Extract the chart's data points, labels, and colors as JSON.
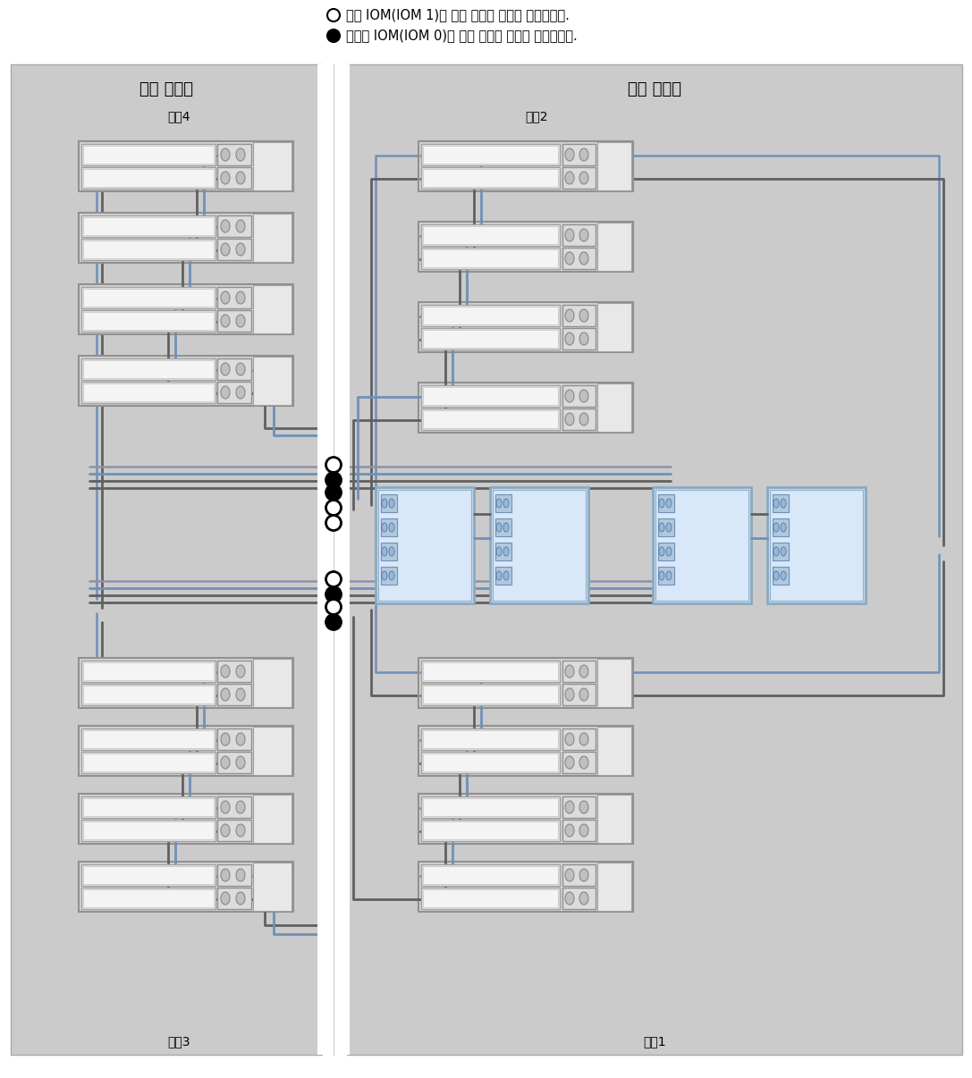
{
  "legend_open_text": "위쪽 IOM(IOM 1)에 대한 케이블 연결을 나타냅니다.",
  "legend_filled_text": "아래쪽 IOM(IOM 0)에 대한 케이블 연결을 나타냅니다.",
  "left_cabinet_label": "확장 캐비닛",
  "right_cabinet_label": "기본 캐비닛",
  "chain4_label": "체인4",
  "chain3_label": "체인3",
  "chain2_label": "체인2",
  "chain1_label": "체인1",
  "cab_bg": "#cbcbcb",
  "shelf_outer": "#d8d8d8",
  "shelf_inner": "#f0f0f0",
  "shelf_panel_light": "#e8e8e8",
  "shelf_right_panel": "#d0d0d0",
  "iom_fill": "#e4e4e4",
  "port_fill": "#c8c8c8",
  "ctrl_fill": "#c8dcf0",
  "ctrl_edge": "#8aaac8",
  "cable_dark": "#606060",
  "cable_blue": "#7090b8",
  "cable_light": "#9090a8",
  "dot_open_face": "#ffffff",
  "dot_filled_face": "#000000"
}
